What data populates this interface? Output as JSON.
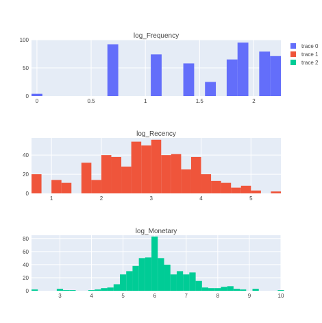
{
  "chart_data": [
    {
      "type": "bar",
      "title": "log_Frequency",
      "series": [
        {
          "name": "trace 0",
          "color": "#636efa"
        }
      ],
      "xlim": [
        -0.05,
        2.25
      ],
      "ylim": [
        0,
        100
      ],
      "x_ticks": [
        "0",
        "0.5",
        "1",
        "1.5",
        "2"
      ],
      "x_tick_values": [
        0,
        0.5,
        1,
        1.5,
        2
      ],
      "y_ticks": [
        "0",
        "50",
        "100"
      ],
      "y_tick_values": [
        0,
        50,
        100
      ],
      "bin_width": 0.1,
      "bins": [
        {
          "x0": -0.05,
          "value": 4
        },
        {
          "x0": 0.65,
          "value": 92
        },
        {
          "x0": 1.05,
          "value": 74
        },
        {
          "x0": 1.35,
          "value": 58
        },
        {
          "x0": 1.55,
          "value": 25
        },
        {
          "x0": 1.75,
          "value": 65
        },
        {
          "x0": 1.85,
          "value": 95
        },
        {
          "x0": 2.05,
          "value": 79
        },
        {
          "x0": 2.15,
          "value": 71
        }
      ]
    },
    {
      "type": "bar",
      "title": "log_Recency",
      "series": [
        {
          "name": "trace 1",
          "color": "#ef553b"
        }
      ],
      "xlim": [
        0.6,
        5.6
      ],
      "ylim": [
        0,
        58
      ],
      "x_ticks": [
        "1",
        "2",
        "3",
        "4",
        "5"
      ],
      "x_tick_values": [
        1,
        2,
        3,
        4,
        5
      ],
      "y_ticks": [
        "0",
        "20",
        "40"
      ],
      "y_tick_values": [
        0,
        20,
        40
      ],
      "bin_width": 0.2,
      "bins": [
        {
          "x0": 0.6,
          "value": 20
        },
        {
          "x0": 1.0,
          "value": 14
        },
        {
          "x0": 1.2,
          "value": 11
        },
        {
          "x0": 1.6,
          "value": 32
        },
        {
          "x0": 1.8,
          "value": 14
        },
        {
          "x0": 2.0,
          "value": 40
        },
        {
          "x0": 2.2,
          "value": 38
        },
        {
          "x0": 2.4,
          "value": 28
        },
        {
          "x0": 2.6,
          "value": 54
        },
        {
          "x0": 2.8,
          "value": 50
        },
        {
          "x0": 3.0,
          "value": 56
        },
        {
          "x0": 3.2,
          "value": 40
        },
        {
          "x0": 3.4,
          "value": 41
        },
        {
          "x0": 3.6,
          "value": 25
        },
        {
          "x0": 3.8,
          "value": 38
        },
        {
          "x0": 4.0,
          "value": 20
        },
        {
          "x0": 4.2,
          "value": 13
        },
        {
          "x0": 4.4,
          "value": 11
        },
        {
          "x0": 4.6,
          "value": 6
        },
        {
          "x0": 4.8,
          "value": 8
        },
        {
          "x0": 5.0,
          "value": 3
        },
        {
          "x0": 5.4,
          "value": 2
        }
      ]
    },
    {
      "type": "bar",
      "title": "log_Monetary",
      "series": [
        {
          "name": "trace 2",
          "color": "#00cc96"
        }
      ],
      "xlim": [
        2.1,
        10.0
      ],
      "ylim": [
        0,
        85
      ],
      "x_ticks": [
        "3",
        "4",
        "5",
        "6",
        "7",
        "8",
        "9",
        "10"
      ],
      "x_tick_values": [
        3,
        4,
        5,
        6,
        7,
        8,
        9,
        10
      ],
      "y_ticks": [
        "0",
        "20",
        "40",
        "60",
        "80"
      ],
      "y_tick_values": [
        0,
        20,
        40,
        60,
        80
      ],
      "bin_width": 0.2,
      "bins": [
        {
          "x0": 2.1,
          "value": 2
        },
        {
          "x0": 2.9,
          "value": 3
        },
        {
          "x0": 3.1,
          "value": 1
        },
        {
          "x0": 3.3,
          "value": 1
        },
        {
          "x0": 3.9,
          "value": 1
        },
        {
          "x0": 4.1,
          "value": 2
        },
        {
          "x0": 4.3,
          "value": 4
        },
        {
          "x0": 4.5,
          "value": 5
        },
        {
          "x0": 4.7,
          "value": 10
        },
        {
          "x0": 4.9,
          "value": 25
        },
        {
          "x0": 5.1,
          "value": 30
        },
        {
          "x0": 5.3,
          "value": 38
        },
        {
          "x0": 5.5,
          "value": 50
        },
        {
          "x0": 5.7,
          "value": 51
        },
        {
          "x0": 5.9,
          "value": 83
        },
        {
          "x0": 6.1,
          "value": 50
        },
        {
          "x0": 6.3,
          "value": 40
        },
        {
          "x0": 6.5,
          "value": 25
        },
        {
          "x0": 6.7,
          "value": 30
        },
        {
          "x0": 6.9,
          "value": 25
        },
        {
          "x0": 7.1,
          "value": 28
        },
        {
          "x0": 7.3,
          "value": 15
        },
        {
          "x0": 7.5,
          "value": 5
        },
        {
          "x0": 7.7,
          "value": 4
        },
        {
          "x0": 7.9,
          "value": 4
        },
        {
          "x0": 8.1,
          "value": 6
        },
        {
          "x0": 8.3,
          "value": 7
        },
        {
          "x0": 8.5,
          "value": 3
        },
        {
          "x0": 8.7,
          "value": 2
        },
        {
          "x0": 9.1,
          "value": 3
        },
        {
          "x0": 9.9,
          "value": 1
        }
      ]
    }
  ],
  "legend": {
    "position": "top-right",
    "items": [
      {
        "name": "trace 0",
        "color": "#636efa"
      },
      {
        "name": "trace 1",
        "color": "#ef553b"
      },
      {
        "name": "trace 2",
        "color": "#00cc96"
      }
    ]
  },
  "style": {
    "plot_bg": "#e5ecf6",
    "grid_color": "#ffffff",
    "text_color": "#444444",
    "grid": true
  }
}
